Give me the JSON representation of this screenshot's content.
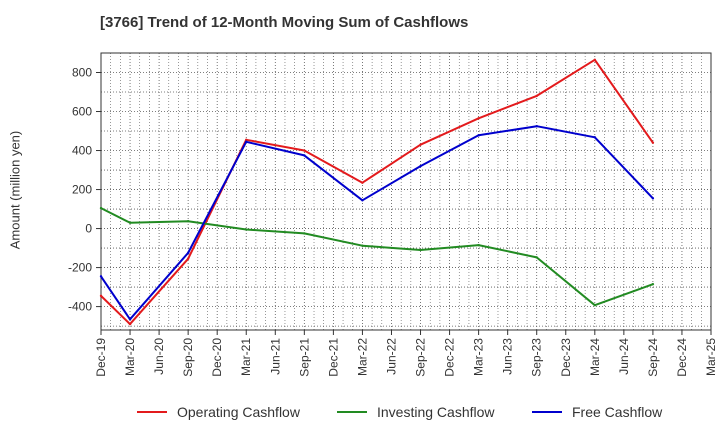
{
  "title": "[3766]  Trend of 12-Month Moving Sum of Cashflows",
  "colors": {
    "operating": "#e31a1c",
    "investing": "#228b22",
    "free": "#0000cd",
    "grid": "#555555",
    "axis": "#333333"
  },
  "legend": {
    "operating": "Operating Cashflow",
    "investing": "Investing Cashflow",
    "free": "Free Cashflow"
  },
  "chart_data": {
    "type": "line",
    "title": "[3766]  Trend of 12-Month Moving Sum of Cashflows",
    "xlabel": "",
    "ylabel": "Amount (million yen)",
    "ylim": [
      -520,
      900
    ],
    "yticks": [
      800,
      600,
      400,
      200,
      0,
      -200,
      -400
    ],
    "categories": [
      "Dec-19",
      "Mar-20",
      "Jun-20",
      "Sep-20",
      "Dec-20",
      "Mar-21",
      "Jun-21",
      "Sep-21",
      "Dec-21",
      "Mar-22",
      "Jun-22",
      "Sep-22",
      "Dec-22",
      "Mar-23",
      "Jun-23",
      "Sep-23",
      "Dec-23",
      "Mar-24",
      "Jun-24",
      "Sep-24",
      "Dec-24",
      "Mar-25"
    ],
    "grid": true,
    "legend_position": "bottom",
    "series": [
      {
        "name": "Operating Cashflow",
        "color_key": "operating",
        "values": [
          -345,
          -490,
          null,
          -155,
          null,
          455,
          null,
          400,
          null,
          235,
          null,
          430,
          null,
          565,
          null,
          680,
          null,
          865,
          null,
          440,
          null,
          null
        ]
      },
      {
        "name": "Investing Cashflow",
        "color_key": "investing",
        "values": [
          105,
          30,
          null,
          38,
          null,
          -5,
          null,
          -25,
          null,
          -88,
          null,
          -110,
          null,
          -85,
          null,
          -148,
          null,
          -393,
          null,
          -285,
          null,
          null
        ]
      },
      {
        "name": "Free Cashflow",
        "color_key": "free",
        "values": [
          -245,
          -465,
          null,
          -125,
          null,
          445,
          null,
          375,
          null,
          145,
          null,
          320,
          null,
          478,
          null,
          525,
          null,
          468,
          null,
          155,
          null,
          null
        ]
      }
    ]
  }
}
